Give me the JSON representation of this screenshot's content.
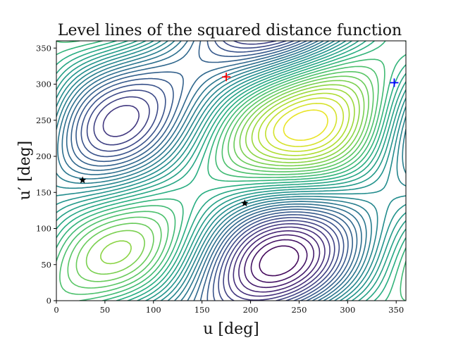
{
  "chart_data": {
    "type": "contour",
    "title": "Level lines of the squared distance function",
    "xlabel": "u [deg]",
    "ylabel": "u′ [deg]",
    "xlim": [
      0,
      360
    ],
    "ylim": [
      0,
      360
    ],
    "xticks": [
      0,
      50,
      100,
      150,
      200,
      250,
      300,
      350
    ],
    "yticks": [
      0,
      50,
      100,
      150,
      200,
      250,
      300,
      350
    ],
    "grid": false,
    "colormap": "viridis",
    "markers": [
      {
        "kind": "plus",
        "color": "#ff0000",
        "x": 175,
        "y": 310
      },
      {
        "kind": "plus",
        "color": "#0000ff",
        "x": 348,
        "y": 302
      },
      {
        "kind": "star",
        "color": "#000000",
        "x": 27,
        "y": 167
      },
      {
        "kind": "star",
        "color": "#000000",
        "x": 194,
        "y": 135
      }
    ]
  }
}
